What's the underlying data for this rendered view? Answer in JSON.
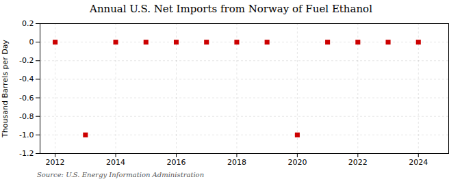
{
  "chart_data": {
    "type": "scatter",
    "title": "Annual U.S. Net Imports from Norway of Fuel Ethanol",
    "ylabel": "Thousand Barrels per Day",
    "source": "Source: U.S. Energy Information Administration",
    "x": [
      2012,
      2013,
      2014,
      2015,
      2016,
      2017,
      2018,
      2019,
      2020,
      2021,
      2022,
      2023,
      2024
    ],
    "values": [
      0.0,
      -1.0,
      0.0,
      0.0,
      0.0,
      0.0,
      0.0,
      0.0,
      -1.0,
      0.0,
      0.0,
      0.0,
      0.0
    ],
    "color": "#cc0000",
    "marker": "square",
    "xlim": [
      2011.5,
      2025.0
    ],
    "xticks": [
      2012,
      2014,
      2016,
      2018,
      2020,
      2022,
      2024
    ],
    "ylim": [
      -1.2,
      0.2
    ],
    "yticks": [
      -1.2,
      {
        "value": -1.0,
        "label": "-1.0"
      },
      -0.8,
      -0.6,
      -0.4,
      -0.2,
      0,
      0.2
    ],
    "grid": true
  }
}
